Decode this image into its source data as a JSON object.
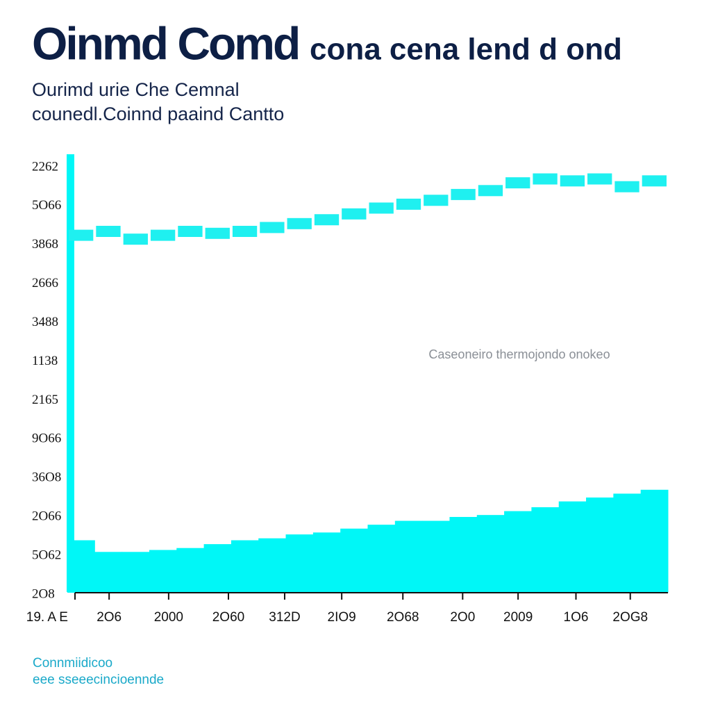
{
  "chart_data": {
    "type": "bar",
    "title": "Oinmd Comd",
    "title_extra": "cona cena lend d ond",
    "subtitle": [
      "Ourimd urie Che Cemnal",
      "counedl.Coinnd paaind Cantto"
    ],
    "annotation": "Caseoneiro thermojondo onokeo",
    "footer": [
      "Connmiidicoo",
      "eee sseeecincioennde"
    ],
    "x": [
      0,
      1,
      2,
      3,
      4,
      5,
      6,
      7,
      8,
      9,
      10,
      11,
      12,
      13,
      14,
      15,
      16,
      17,
      18,
      19,
      20,
      21
    ],
    "xlim": [
      0,
      22
    ],
    "xticks": [
      {
        "value": 0.28,
        "label": "19. A E"
      },
      {
        "value": 1.53,
        "label": "2O6"
      },
      {
        "value": 3.71,
        "label": "2000"
      },
      {
        "value": 5.9,
        "label": "2O60"
      },
      {
        "value": 7.96,
        "label": "312D"
      },
      {
        "value": 10.05,
        "label": "2IO9"
      },
      {
        "value": 12.29,
        "label": "2O68"
      },
      {
        "value": 14.48,
        "label": "2O0"
      },
      {
        "value": 16.51,
        "label": "2009"
      },
      {
        "value": 18.63,
        "label": "1O6"
      },
      {
        "value": 20.62,
        "label": "2OG8"
      }
    ],
    "ylim": [
      0,
      11.5
    ],
    "yticks": [
      {
        "value": 0,
        "label": "2O8"
      },
      {
        "value": 1,
        "label": "5O62"
      },
      {
        "value": 2,
        "label": "2O66"
      },
      {
        "value": 3,
        "label": "36O8"
      },
      {
        "value": 4,
        "label": "9O66"
      },
      {
        "value": 5,
        "label": "2165"
      },
      {
        "value": 6,
        "label": "1138"
      },
      {
        "value": 7,
        "label": "3488"
      },
      {
        "value": 8,
        "label": "2666"
      },
      {
        "value": 9,
        "label": "3868"
      },
      {
        "value": 10,
        "label": "5O66"
      },
      {
        "value": 11,
        "label": "2262"
      }
    ],
    "series": [
      {
        "color": "#00f7f7",
        "style": "area",
        "values": [
          1.35,
          1.05,
          1.05,
          1.1,
          1.15,
          1.25,
          1.35,
          1.4,
          1.5,
          1.55,
          1.65,
          1.75,
          1.85,
          1.85,
          1.95,
          2.0,
          2.1,
          2.2,
          2.35,
          2.45,
          2.55,
          2.65
        ]
      },
      {
        "color": "#1ff0f0",
        "style": "squares",
        "values": [
          9.2,
          9.3,
          9.1,
          9.2,
          9.3,
          9.25,
          9.3,
          9.4,
          9.5,
          9.6,
          9.75,
          9.9,
          10.0,
          10.1,
          10.25,
          10.35,
          10.55,
          10.65,
          10.6,
          10.65,
          10.45,
          10.6
        ]
      }
    ]
  }
}
